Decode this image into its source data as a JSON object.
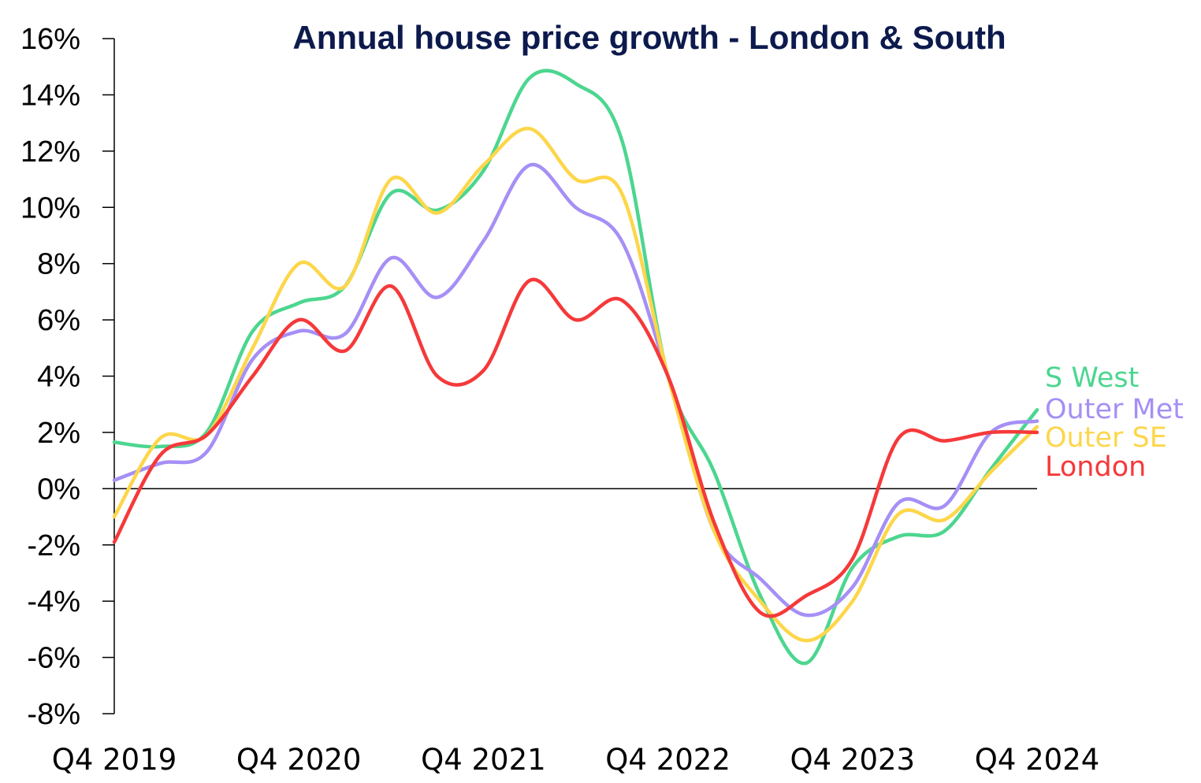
{
  "chart_data": {
    "type": "line",
    "title": "Annual house price growth - London & South",
    "xlabel": "",
    "ylabel": "",
    "ylim": [
      -8,
      16
    ],
    "yticks": [
      -8,
      -6,
      -4,
      -2,
      0,
      2,
      4,
      6,
      8,
      10,
      12,
      14,
      16
    ],
    "ytick_labels": [
      "-8%",
      "-6%",
      "-4%",
      "-2%",
      "0%",
      "2%",
      "4%",
      "6%",
      "8%",
      "10%",
      "12%",
      "14%",
      "16%"
    ],
    "x": [
      "Q4 2019",
      "Q1 2020",
      "Q2 2020",
      "Q3 2020",
      "Q4 2020",
      "Q1 2021",
      "Q2 2021",
      "Q3 2021",
      "Q4 2021",
      "Q1 2022",
      "Q2 2022",
      "Q3 2022",
      "Q4 2022",
      "Q1 2023",
      "Q2 2023",
      "Q3 2023",
      "Q4 2023",
      "Q1 2024",
      "Q2 2024",
      "Q3 2024",
      "Q4 2024"
    ],
    "xtick_labels": [
      "Q4 2019",
      "Q4 2020",
      "Q4 2021",
      "Q4 2022",
      "Q4 2023",
      "Q4 2024"
    ],
    "xtick_indices": [
      0,
      4,
      8,
      12,
      16,
      20
    ],
    "grid": false,
    "zero_line": true,
    "legend": "right (end-of-line labels)",
    "series": [
      {
        "name": "S West",
        "color": "#4cd68f",
        "values": [
          1.65,
          1.5,
          2.0,
          5.6,
          6.6,
          7.2,
          10.5,
          9.9,
          11.3,
          14.6,
          14.4,
          12.4,
          4.0,
          0.6,
          -3.8,
          -6.2,
          -2.8,
          -1.7,
          -1.5,
          0.7,
          2.8
        ]
      },
      {
        "name": "Outer Met",
        "color": "#a68ff5",
        "values": [
          0.3,
          0.9,
          1.3,
          4.6,
          5.6,
          5.5,
          8.2,
          6.8,
          8.8,
          11.5,
          10.0,
          8.8,
          4.0,
          -1.5,
          -3.2,
          -4.5,
          -3.5,
          -0.5,
          -0.6,
          2.0,
          2.4
        ]
      },
      {
        "name": "Outer SE",
        "color": "#fdd64a",
        "values": [
          -1.0,
          1.8,
          1.9,
          5.0,
          8.0,
          7.2,
          11.0,
          9.8,
          11.5,
          12.8,
          11.0,
          10.5,
          4.0,
          -1.5,
          -4.0,
          -5.4,
          -4.0,
          -0.9,
          -1.1,
          0.6,
          2.2
        ]
      },
      {
        "name": "London",
        "color": "#f5393a",
        "values": [
          -1.9,
          1.2,
          1.9,
          4.0,
          6.0,
          4.9,
          7.2,
          4.0,
          4.2,
          7.4,
          6.0,
          6.7,
          4.0,
          -1.2,
          -4.4,
          -3.8,
          -2.5,
          1.8,
          1.7,
          2.0,
          2.0
        ]
      }
    ]
  }
}
